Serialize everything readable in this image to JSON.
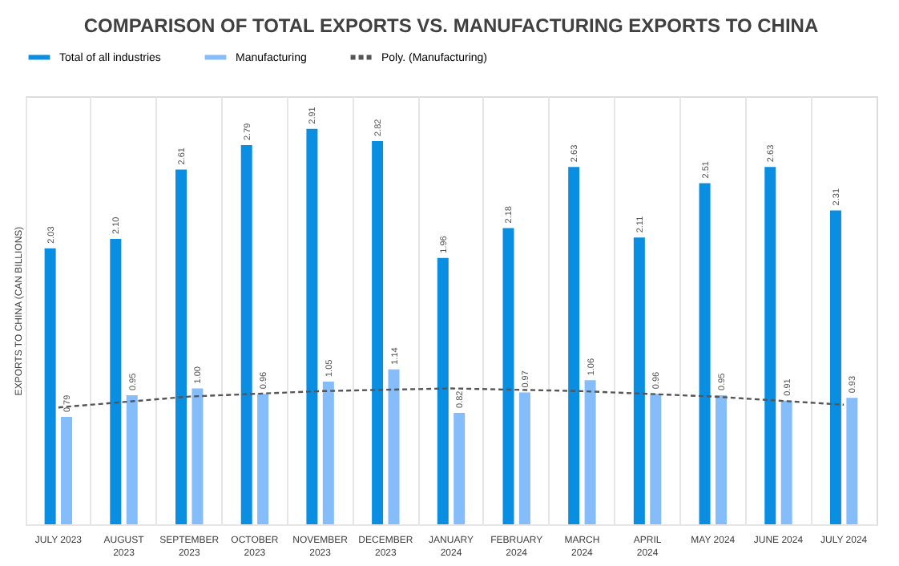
{
  "chart_data": {
    "type": "bar",
    "title": "COMPARISON OF TOTAL EXPORTS VS. MANUFACTURING EXPORTS TO CHINA",
    "ylabel": "EXPORTS TO CHINA (CAN BILLIONS)",
    "categories": [
      "JULY 2023",
      "AUGUST 2023",
      "SEPTEMBER 2023",
      "OCTOBER 2023",
      "NOVEMBER 2023",
      "DECEMBER 2023",
      "JANUARY 2024",
      "FEBRUARY 2024",
      "MARCH 2024",
      "APRIL 2024",
      "MAY 2024",
      "JUNE 2024",
      "JULY 2024"
    ],
    "series": [
      {
        "name": "Total of all industries",
        "color": "#0a8ee2",
        "values": [
          2.03,
          2.1,
          2.61,
          2.79,
          2.91,
          2.82,
          1.96,
          2.18,
          2.63,
          2.11,
          2.51,
          2.63,
          2.31
        ],
        "value_labels": [
          "2.03",
          "2.10",
          "2.61",
          "2.79",
          "2.91",
          "2.82",
          "1.96",
          "2.18",
          "2.63",
          "2.11",
          "2.51",
          "2.63",
          "2.31"
        ]
      },
      {
        "name": "Manufacturing",
        "color": "#85bcfa",
        "values": [
          0.79,
          0.95,
          1.0,
          0.96,
          1.05,
          1.14,
          0.82,
          0.97,
          1.06,
          0.96,
          0.95,
          0.91,
          0.93
        ],
        "value_labels": [
          "0.79",
          "0.95",
          "1.00",
          "0.96",
          "1.05",
          "1.14",
          "0.82",
          "0.97",
          "1.06",
          "0.96",
          "0.95",
          "0.91",
          "0.93"
        ]
      },
      {
        "name": "Poly. (Manufacturing)",
        "type": "line",
        "color": "#555555",
        "line_style": "dashed",
        "values": [
          0.86,
          0.9,
          0.94,
          0.96,
          0.98,
          0.99,
          1.0,
          0.99,
          0.98,
          0.96,
          0.94,
          0.91,
          0.88
        ]
      }
    ],
    "ylim": [
      0,
      3.15
    ],
    "grid": "x",
    "legend": "top",
    "tick_labels": "x"
  }
}
